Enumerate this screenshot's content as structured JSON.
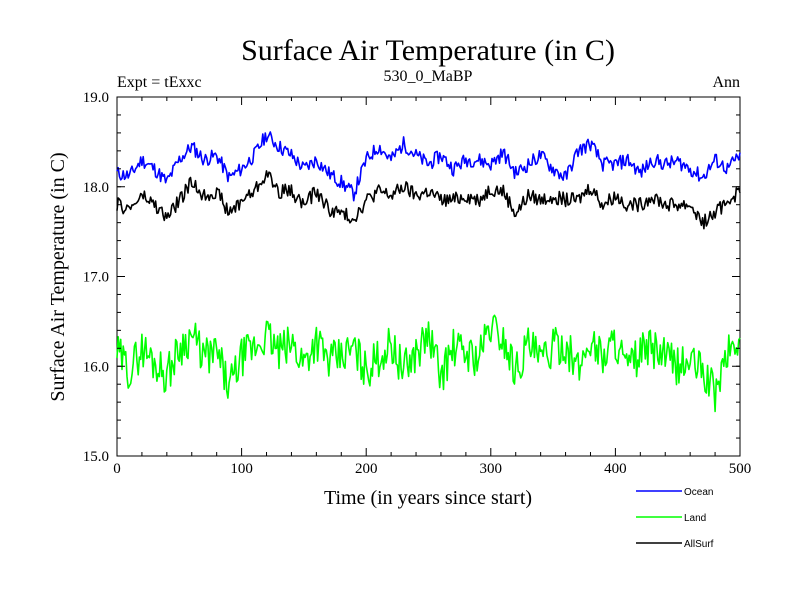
{
  "chart_data": {
    "type": "line",
    "title": "Surface Air Temperature (in C)",
    "subtitle_left": "Expt = tExxc",
    "subtitle_center": "530_0_MaBP",
    "subtitle_right": "Ann",
    "xlabel": "Time (in years since start)",
    "ylabel": "Surface Air Temperature (in C)",
    "xlim": [
      0,
      500
    ],
    "ylim": [
      15.0,
      19.0
    ],
    "xticks": [
      0,
      100,
      200,
      300,
      400,
      500
    ],
    "xtick_labels": [
      "0",
      "100",
      "200",
      "300",
      "400",
      "500"
    ],
    "yticks": [
      15.0,
      16.0,
      17.0,
      18.0,
      19.0
    ],
    "ytick_labels": [
      "15.0",
      "16.0",
      "17.0",
      "18.0",
      "19.0"
    ],
    "grid": false,
    "legend_position": "bottom-right below plot",
    "x": [
      0,
      10,
      20,
      30,
      40,
      50,
      60,
      70,
      80,
      90,
      100,
      110,
      120,
      130,
      140,
      150,
      160,
      170,
      180,
      190,
      200,
      210,
      220,
      230,
      240,
      250,
      260,
      270,
      280,
      290,
      300,
      310,
      320,
      330,
      340,
      350,
      360,
      370,
      380,
      390,
      400,
      410,
      420,
      430,
      440,
      450,
      460,
      470,
      480,
      490,
      500
    ],
    "series": [
      {
        "name": "Ocean",
        "color": "#0000ff",
        "values": [
          18.15,
          18.12,
          18.3,
          18.2,
          18.05,
          18.3,
          18.45,
          18.3,
          18.35,
          18.1,
          18.2,
          18.35,
          18.58,
          18.45,
          18.35,
          18.2,
          18.3,
          18.15,
          18.05,
          17.92,
          18.3,
          18.45,
          18.3,
          18.48,
          18.35,
          18.25,
          18.35,
          18.2,
          18.3,
          18.3,
          18.25,
          18.38,
          18.15,
          18.25,
          18.35,
          18.2,
          18.1,
          18.4,
          18.48,
          18.25,
          18.25,
          18.3,
          18.15,
          18.3,
          18.25,
          18.28,
          18.2,
          18.1,
          18.3,
          18.2,
          18.35
        ]
      },
      {
        "name": "Land",
        "color": "#00ff00",
        "values": [
          16.15,
          15.95,
          16.2,
          16.05,
          15.9,
          16.2,
          16.35,
          16.1,
          16.15,
          15.75,
          16.1,
          16.2,
          16.35,
          16.15,
          16.25,
          16.05,
          16.3,
          16.05,
          16.1,
          16.2,
          15.95,
          16.1,
          16.25,
          15.95,
          16.15,
          16.35,
          15.9,
          16.2,
          16.15,
          16.1,
          16.45,
          16.3,
          15.95,
          16.25,
          16.05,
          16.2,
          16.25,
          15.95,
          16.3,
          16.1,
          16.3,
          15.95,
          16.15,
          16.2,
          16.1,
          16.0,
          16.05,
          15.95,
          15.7,
          16.15,
          16.3
        ]
      },
      {
        "name": "AllSurf",
        "color": "#000000",
        "values": [
          17.8,
          17.75,
          17.9,
          17.8,
          17.65,
          17.85,
          18.05,
          17.9,
          17.95,
          17.7,
          17.85,
          17.95,
          18.15,
          17.95,
          17.95,
          17.8,
          17.95,
          17.75,
          17.7,
          17.65,
          17.85,
          17.95,
          17.9,
          18.0,
          17.9,
          17.95,
          17.85,
          17.85,
          17.9,
          17.85,
          17.98,
          17.95,
          17.7,
          17.9,
          17.85,
          17.9,
          17.85,
          17.85,
          18.0,
          17.8,
          17.9,
          17.8,
          17.8,
          17.9,
          17.8,
          17.8,
          17.8,
          17.6,
          17.7,
          17.85,
          17.95
        ]
      }
    ]
  }
}
